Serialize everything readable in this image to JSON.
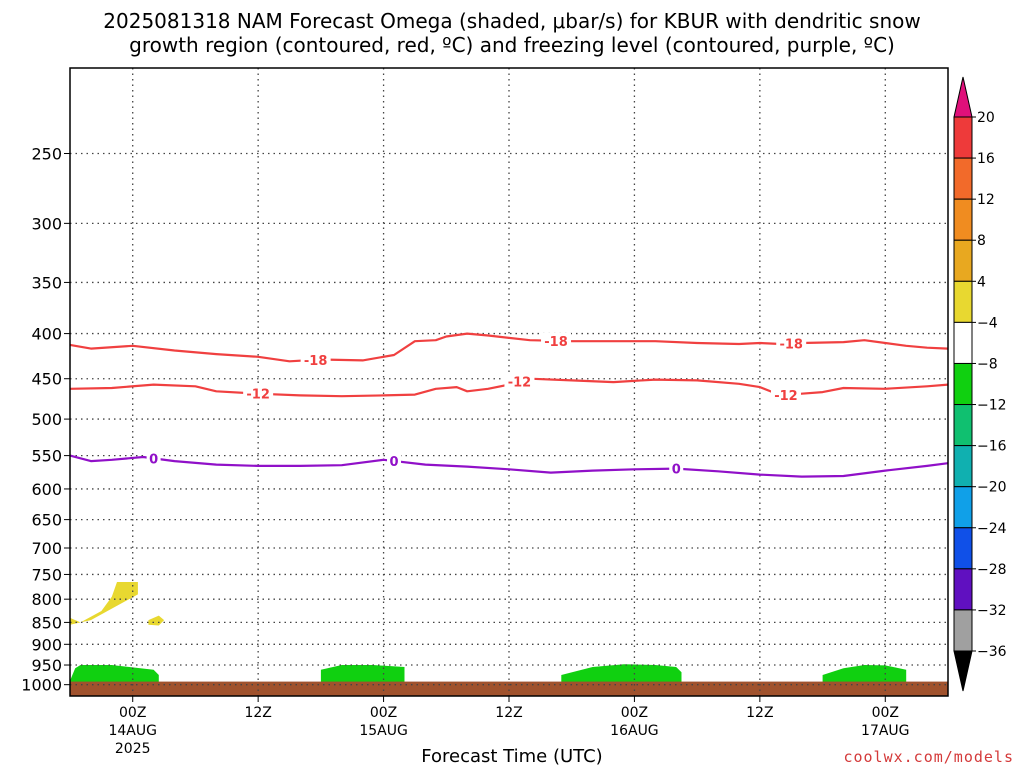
{
  "title": {
    "line1": "2025081318 NAM Forecast Omega (shaded, μbar/s) for KBUR with dendritic snow",
    "line2": "growth region (contoured, red, ºC) and freezing level (contoured, purple, ºC)"
  },
  "x_axis_title": "Forecast Time (UTC)",
  "credit": "coolwx.com/models",
  "colors": {
    "dgz_contour": "#f04040",
    "freezing_contour": "#9010c8",
    "ground": "#a0522d",
    "grid": "#444444"
  },
  "chart_data": {
    "type": "time-height cross section",
    "y_axis": {
      "unit": "hPa",
      "scale": "log-pressure, inverted",
      "range": [
        1030,
        200
      ],
      "ticks": [
        250,
        300,
        350,
        400,
        450,
        500,
        550,
        600,
        650,
        700,
        750,
        800,
        850,
        900,
        950,
        1000
      ]
    },
    "x_axis": {
      "unit": "forecast hour from 2025081318",
      "range": [
        0,
        84
      ],
      "ticks": [
        {
          "hour": 6,
          "label": "00Z",
          "sub": "14AUG",
          "sub2": "2025"
        },
        {
          "hour": 18,
          "label": "12Z",
          "sub": "",
          "sub2": ""
        },
        {
          "hour": 30,
          "label": "00Z",
          "sub": "15AUG",
          "sub2": ""
        },
        {
          "hour": 42,
          "label": "12Z",
          "sub": "",
          "sub2": ""
        },
        {
          "hour": 54,
          "label": "00Z",
          "sub": "16AUG",
          "sub2": ""
        },
        {
          "hour": 66,
          "label": "12Z",
          "sub": "",
          "sub2": ""
        },
        {
          "hour": 78,
          "label": "00Z",
          "sub": "17AUG",
          "sub2": ""
        }
      ],
      "grid": "dotted"
    },
    "colorbar": {
      "labels": [
        "20",
        "16",
        "12",
        "8",
        "4",
        "−4",
        "−8",
        "−12",
        "−16",
        "−20",
        "−24",
        "−28",
        "−32",
        "−36"
      ],
      "colors": [
        "#ee3a3a",
        "#f26a2a",
        "#f08c20",
        "#e8a820",
        "#e8d830",
        "#ffffff",
        "#10d010",
        "#10c070",
        "#10b0b0",
        "#10a0e8",
        "#1050e8",
        "#6010c0",
        "#9010c0",
        "#a0a0a0"
      ],
      "top_triangle": "#e0107a",
      "bottom_triangle": "#000000"
    },
    "contours": [
      {
        "label": "-18",
        "color": "#f04040",
        "points": [
          [
            0,
            412
          ],
          [
            2,
            416
          ],
          [
            6,
            413
          ],
          [
            10,
            418
          ],
          [
            14,
            422
          ],
          [
            18,
            425
          ],
          [
            21,
            430
          ],
          [
            24,
            428
          ],
          [
            28,
            429
          ],
          [
            31,
            423
          ],
          [
            33,
            408
          ],
          [
            35,
            407
          ],
          [
            36,
            403
          ],
          [
            38,
            400
          ],
          [
            40,
            402
          ],
          [
            44,
            407
          ],
          [
            48,
            408
          ],
          [
            52,
            408
          ],
          [
            56,
            408
          ],
          [
            60,
            410
          ],
          [
            64,
            411
          ],
          [
            66,
            410
          ],
          [
            68,
            411
          ],
          [
            70,
            410
          ],
          [
            74,
            409
          ],
          [
            76,
            407
          ],
          [
            78,
            410
          ],
          [
            80,
            413
          ],
          [
            82,
            415
          ],
          [
            84,
            416
          ]
        ],
        "label_hours": [
          23.5,
          46.5,
          69
        ]
      },
      {
        "label": "-12",
        "color": "#f04040",
        "points": [
          [
            0,
            462
          ],
          [
            4,
            461
          ],
          [
            8,
            457
          ],
          [
            12,
            459
          ],
          [
            14,
            465
          ],
          [
            18,
            468
          ],
          [
            22,
            470
          ],
          [
            26,
            471
          ],
          [
            30,
            470
          ],
          [
            33,
            469
          ],
          [
            35,
            462
          ],
          [
            37,
            460
          ],
          [
            38,
            465
          ],
          [
            40,
            462
          ],
          [
            42,
            457
          ],
          [
            44,
            450
          ],
          [
            48,
            452
          ],
          [
            52,
            454
          ],
          [
            56,
            451
          ],
          [
            60,
            452
          ],
          [
            64,
            456
          ],
          [
            66,
            460
          ],
          [
            68,
            470
          ],
          [
            70,
            468
          ],
          [
            72,
            466
          ],
          [
            74,
            461
          ],
          [
            78,
            462
          ],
          [
            82,
            459
          ],
          [
            84,
            457
          ]
        ],
        "label_hours": [
          18,
          43,
          68.5
        ]
      },
      {
        "label": "0",
        "color": "#9010c8",
        "points": [
          [
            0,
            550
          ],
          [
            2,
            558
          ],
          [
            4,
            556
          ],
          [
            7,
            552
          ],
          [
            10,
            558
          ],
          [
            14,
            563
          ],
          [
            18,
            565
          ],
          [
            22,
            565
          ],
          [
            26,
            564
          ],
          [
            30,
            556
          ],
          [
            34,
            563
          ],
          [
            38,
            566
          ],
          [
            42,
            570
          ],
          [
            46,
            575
          ],
          [
            50,
            572
          ],
          [
            54,
            570
          ],
          [
            58,
            569
          ],
          [
            62,
            573
          ],
          [
            66,
            578
          ],
          [
            70,
            581
          ],
          [
            74,
            580
          ],
          [
            78,
            572
          ],
          [
            82,
            565
          ],
          [
            84,
            561
          ]
        ],
        "label_hours": [
          8,
          31,
          58
        ]
      }
    ],
    "shaded_regions": [
      {
        "category": "4 to 8 (yellow)",
        "color": "#e8d830",
        "points": [
          [
            0,
            840
          ],
          [
            1,
            850
          ],
          [
            3,
            825
          ],
          [
            4,
            795
          ],
          [
            4.5,
            765
          ],
          [
            6.5,
            765
          ],
          [
            6.5,
            790
          ],
          [
            4,
            820
          ],
          [
            2,
            845
          ],
          [
            0,
            855
          ]
        ]
      },
      {
        "category": "4 to 8 (yellow)",
        "color": "#e8d830",
        "points": [
          [
            7.5,
            845
          ],
          [
            8.5,
            835
          ],
          [
            9,
            845
          ],
          [
            8.5,
            857
          ],
          [
            7.5,
            855
          ]
        ]
      },
      {
        "category": "-4 to -8 (green)",
        "color": "#10d010",
        "points": [
          [
            0,
            1000
          ],
          [
            0,
            990
          ],
          [
            0.5,
            958
          ],
          [
            1,
            950
          ],
          [
            4,
            950
          ],
          [
            6,
            956
          ],
          [
            8,
            962
          ],
          [
            8.5,
            975
          ],
          [
            8.5,
            1000
          ]
        ]
      },
      {
        "category": "-4 to -8 (green)",
        "color": "#10d010",
        "points": [
          [
            24,
            1000
          ],
          [
            24,
            962
          ],
          [
            26,
            950
          ],
          [
            29,
            950
          ],
          [
            32,
            955
          ],
          [
            32,
            1000
          ]
        ]
      },
      {
        "category": "-4 to -8 (green)",
        "color": "#10d010",
        "points": [
          [
            47,
            1000
          ],
          [
            47,
            975
          ],
          [
            50,
            955
          ],
          [
            53,
            948
          ],
          [
            56,
            950
          ],
          [
            58,
            955
          ],
          [
            58.5,
            968
          ],
          [
            58.5,
            1000
          ]
        ]
      },
      {
        "category": "-4 to -8 (green)",
        "color": "#10d010",
        "points": [
          [
            72,
            1000
          ],
          [
            72,
            975
          ],
          [
            74,
            958
          ],
          [
            76,
            950
          ],
          [
            78,
            951
          ],
          [
            80,
            962
          ],
          [
            80,
            1000
          ]
        ]
      }
    ],
    "ground_pressure": 992
  }
}
